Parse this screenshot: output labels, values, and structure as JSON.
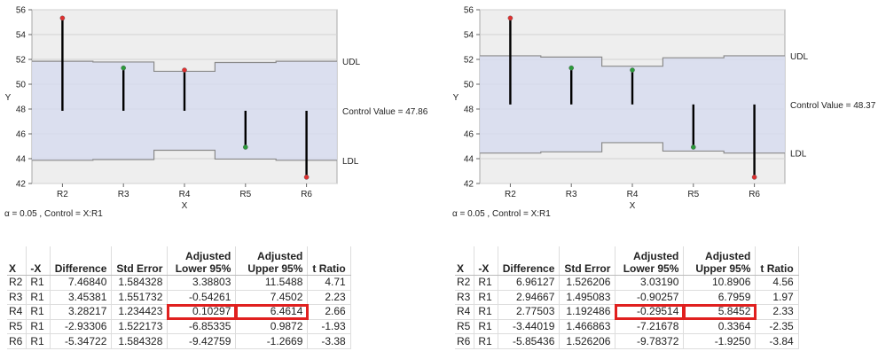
{
  "chart_data": [
    {
      "type": "analysis-of-means",
      "xlabel": "X",
      "ylabel": "Y",
      "categories": [
        "R2",
        "R3",
        "R4",
        "R5",
        "R6"
      ],
      "values": [
        55.33,
        51.31,
        51.14,
        44.93,
        42.51
      ],
      "point_status": [
        "above",
        "within",
        "above",
        "within",
        "below"
      ],
      "control_value": 47.86,
      "control_label": "Control Value = 47.86",
      "udl": [
        51.85,
        51.79,
        51.04,
        51.75,
        51.85
      ],
      "ldl": [
        43.87,
        43.93,
        44.68,
        43.97,
        43.87
      ],
      "udl_label": "UDL",
      "ldl_label": "LDL",
      "ylim": [
        42,
        56
      ],
      "yticks": [
        42,
        44,
        46,
        48,
        50,
        52,
        54,
        56
      ],
      "caption": "α = 0.05 , Control = X:R1"
    },
    {
      "type": "analysis-of-means",
      "xlabel": "X",
      "ylabel": "Y",
      "categories": [
        "R2",
        "R3",
        "R4",
        "R5",
        "R6"
      ],
      "values": [
        55.33,
        51.31,
        51.14,
        44.93,
        42.51
      ],
      "point_status": [
        "above",
        "within",
        "within",
        "within",
        "below"
      ],
      "control_value": 48.37,
      "control_label": "Control Value = 48.37",
      "udl": [
        52.29,
        52.19,
        51.45,
        52.13,
        52.29
      ],
      "ldl": [
        44.45,
        44.55,
        45.29,
        44.61,
        44.45
      ],
      "udl_label": "UDL",
      "ldl_label": "LDL",
      "ylim": [
        42,
        56
      ],
      "yticks": [
        42,
        44,
        46,
        48,
        50,
        52,
        54,
        56
      ],
      "caption": "α = 0.05 , Control = X:R1"
    }
  ],
  "tables": [
    {
      "headers": [
        "X",
        "-X",
        "Difference",
        "Std Error",
        "Adjusted Lower 95%",
        "Adjusted Upper 95%",
        "t Ratio"
      ],
      "rows": [
        [
          "R2",
          "R1",
          "7.46840",
          "1.584328",
          "3.38803",
          "11.5488",
          "4.71"
        ],
        [
          "R3",
          "R1",
          "3.45381",
          "1.551732",
          "-0.54261",
          "7.4502",
          "2.23"
        ],
        [
          "R4",
          "R1",
          "3.28217",
          "1.234423",
          "0.10297",
          "6.4614",
          "2.66"
        ],
        [
          "R5",
          "R1",
          "-2.93306",
          "1.522173",
          "-6.85335",
          "0.9872",
          "-1.93"
        ],
        [
          "R6",
          "R1",
          "-5.34722",
          "1.584328",
          "-9.42759",
          "-1.2669",
          "-3.38"
        ]
      ],
      "highlight_row": 2
    },
    {
      "headers": [
        "X",
        "-X",
        "Difference",
        "Std Error",
        "Adjusted Lower 95%",
        "Adjusted Upper 95%",
        "t Ratio"
      ],
      "rows": [
        [
          "R2",
          "R1",
          "6.96127",
          "1.526206",
          "3.03190",
          "10.8906",
          "4.56"
        ],
        [
          "R3",
          "R1",
          "2.94667",
          "1.495083",
          "-0.90257",
          "6.7959",
          "1.97"
        ],
        [
          "R4",
          "R1",
          "2.77503",
          "1.192486",
          "-0.29514",
          "5.8452",
          "2.33"
        ],
        [
          "R5",
          "R1",
          "-3.44019",
          "1.466863",
          "-7.21678",
          "0.3364",
          "-2.35"
        ],
        [
          "R6",
          "R1",
          "-5.85436",
          "1.526206",
          "-9.78372",
          "-1.9250",
          "-3.84"
        ]
      ],
      "highlight_row": 2
    }
  ],
  "colors": {
    "band_fill": "#d7dcee",
    "plot_bg": "#eeeeee",
    "grid": "#d2d2d2",
    "limit_line": "#8a8a8a",
    "point_above": "#e03030",
    "point_within": "#2a9a3a",
    "highlight": "#e0201f"
  }
}
